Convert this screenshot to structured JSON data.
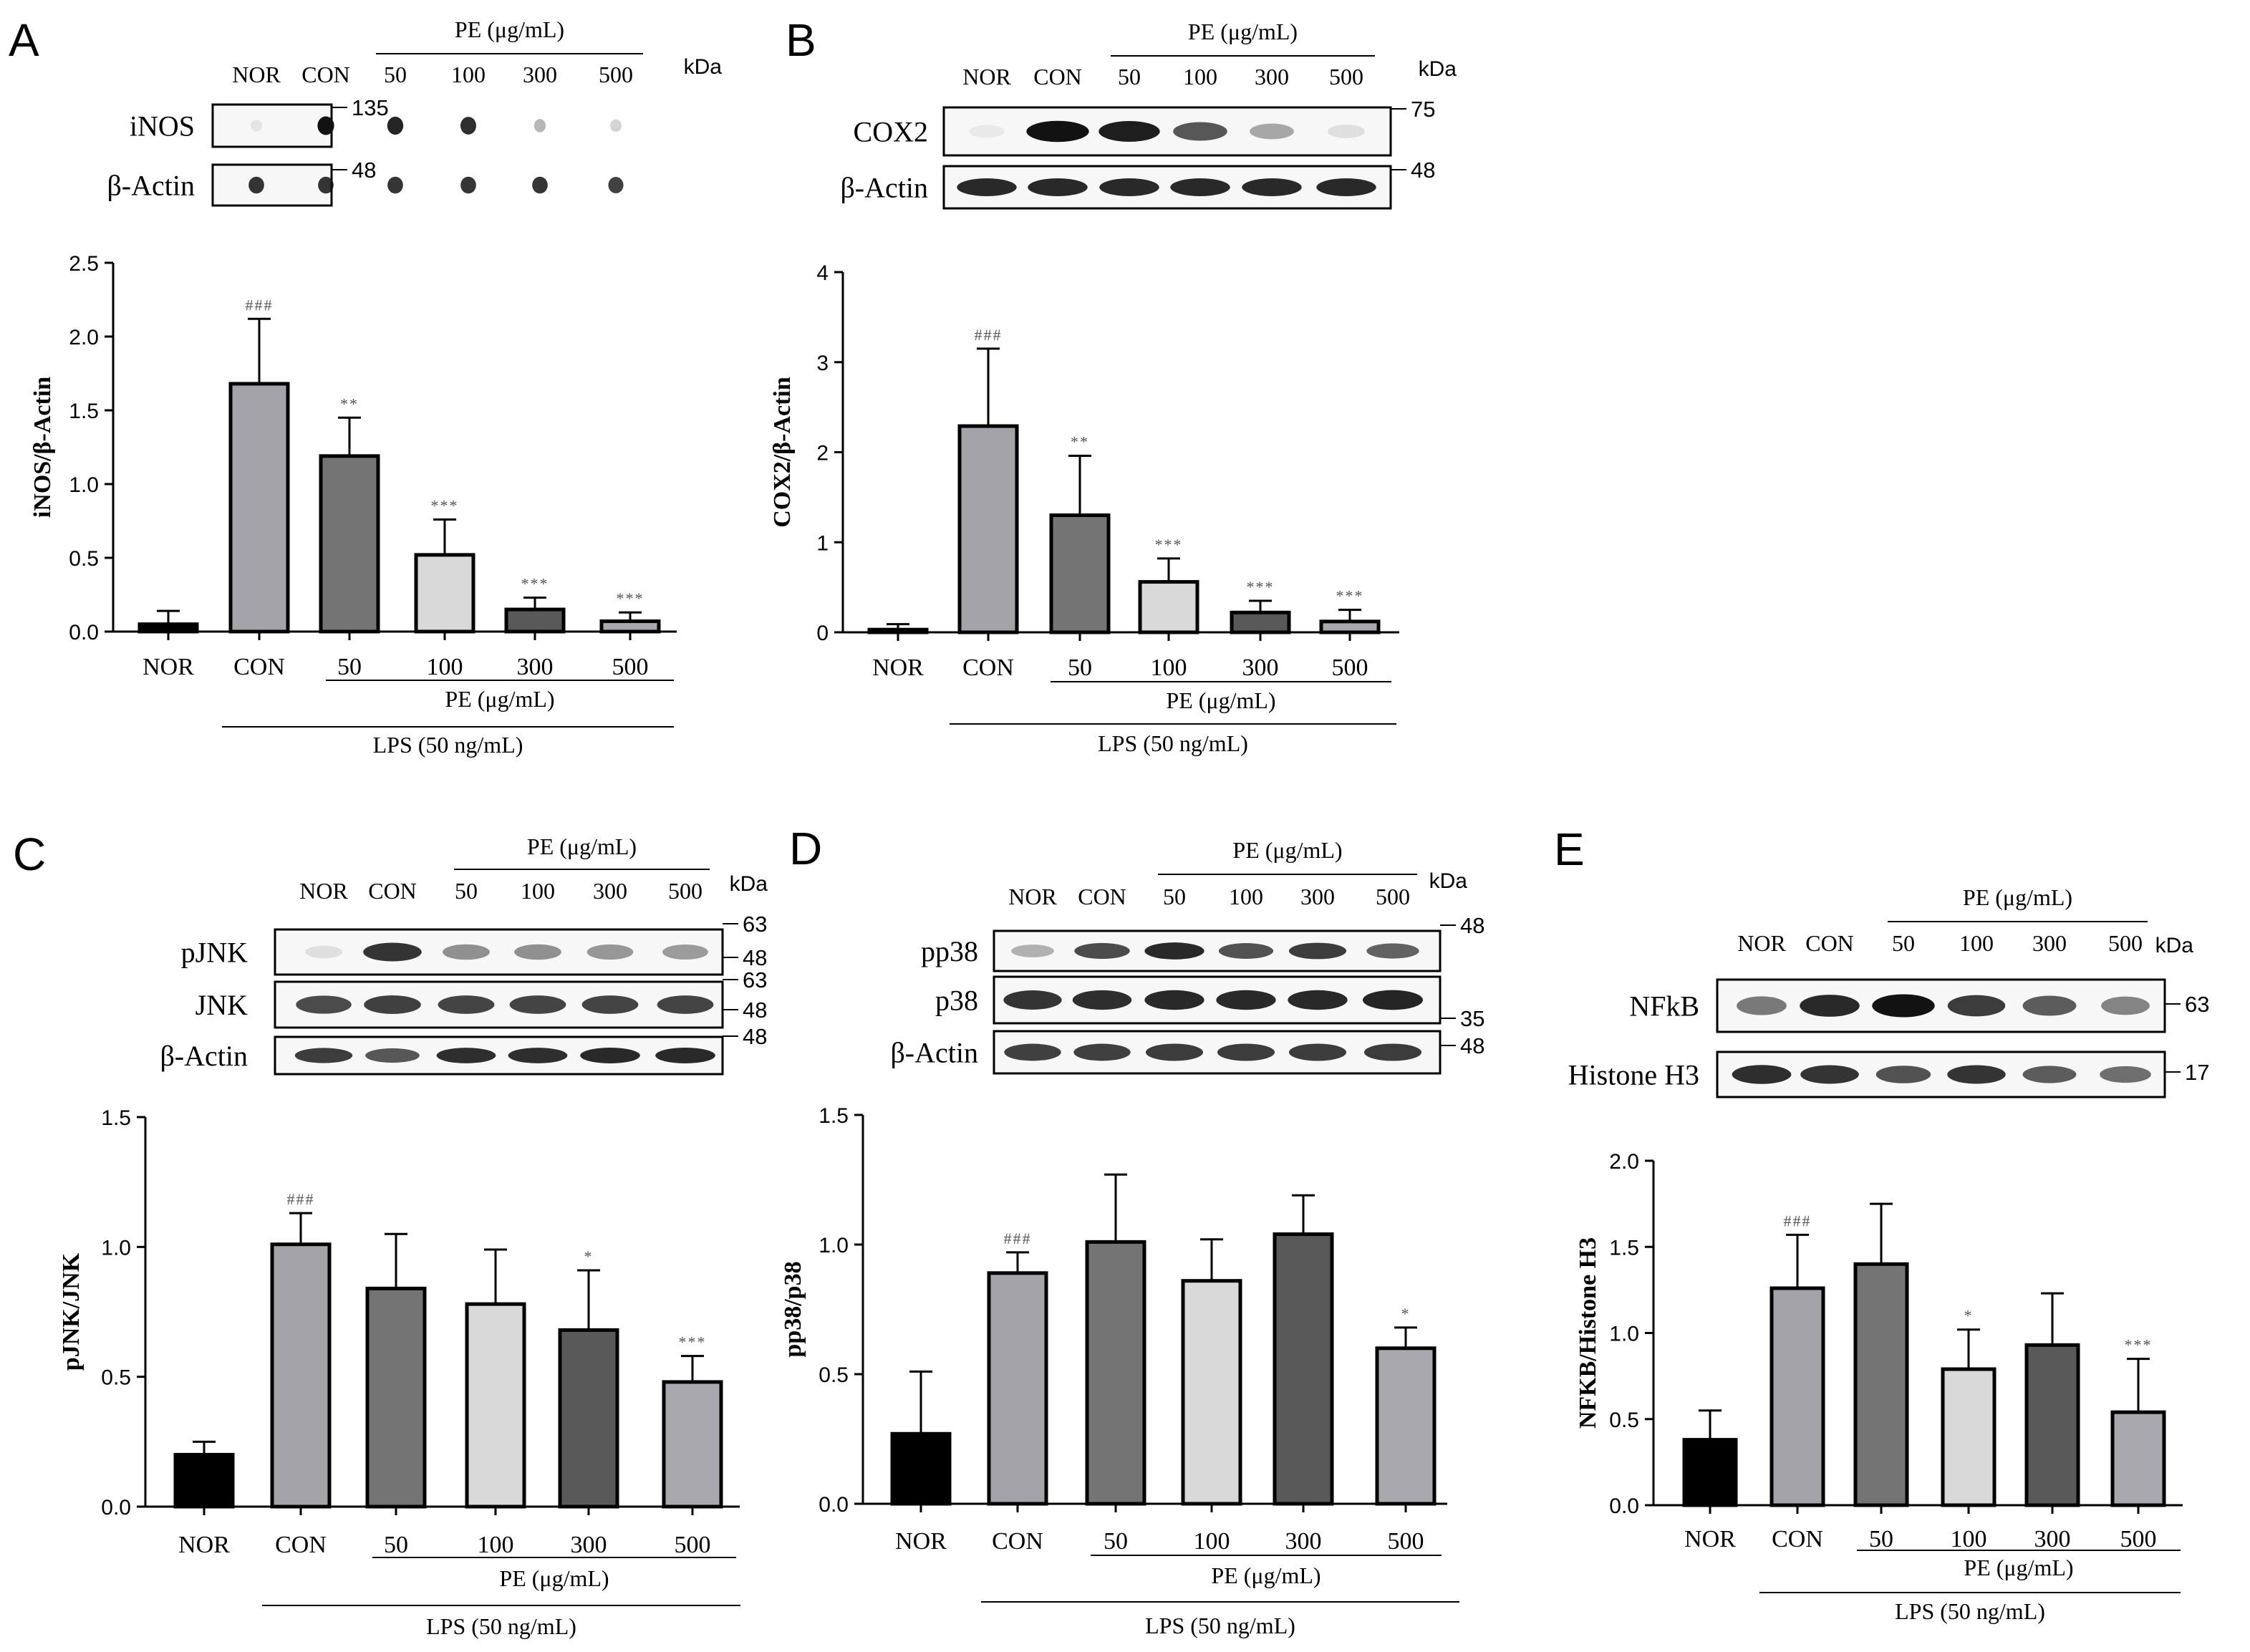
{
  "colors": {
    "NOR": "#000000",
    "CON": "#a3a3a9",
    "PE50": "#747474",
    "PE100": "#d9d9d9",
    "PE300": "#595959",
    "PE500": "#a8a8ae",
    "axis": "#000000",
    "significance": "#555555",
    "band": "#121212",
    "blot_bg": "#f7f7f7"
  },
  "blots": {
    "A": {
      "kda_label": "kDa",
      "pe_header": "PE (μg/mL)",
      "lanes": [
        "NOR",
        "CON",
        "50",
        "100",
        "300",
        "500"
      ],
      "rows": [
        {
          "name": "iNOS",
          "markers": [
            "135"
          ],
          "intensity": [
            0.08,
            1.0,
            0.92,
            0.88,
            0.3,
            0.18
          ]
        },
        {
          "name": "β-Actin",
          "markers": [
            "48"
          ],
          "intensity": [
            0.85,
            0.85,
            0.85,
            0.85,
            0.85,
            0.8
          ]
        }
      ]
    },
    "B": {
      "kda_label": "kDa",
      "pe_header": "PE (μg/mL)",
      "lanes": [
        "NOR",
        "CON",
        "50",
        "100",
        "300",
        "500"
      ],
      "rows": [
        {
          "name": "COX2",
          "markers": [
            "75"
          ],
          "intensity": [
            0.03,
            1.0,
            0.95,
            0.7,
            0.35,
            0.1
          ]
        },
        {
          "name": "β-Actin",
          "markers": [
            "48"
          ],
          "intensity": [
            0.9,
            0.9,
            0.9,
            0.9,
            0.9,
            0.9
          ]
        }
      ]
    },
    "C": {
      "kda_label": "kDa",
      "pe_header": "PE (μg/mL)",
      "lanes": [
        "NOR",
        "CON",
        "50",
        "100",
        "300",
        "500"
      ],
      "rows": [
        {
          "name": "pJNK",
          "markers": [
            "63",
            "48"
          ],
          "intensity": [
            0.1,
            0.85,
            0.45,
            0.45,
            0.42,
            0.4
          ]
        },
        {
          "name": "JNK",
          "markers": [
            "63",
            "48"
          ],
          "intensity": [
            0.75,
            0.8,
            0.78,
            0.78,
            0.78,
            0.78
          ]
        },
        {
          "name": "β-Actin",
          "markers": [
            "48"
          ],
          "intensity": [
            0.82,
            0.7,
            0.88,
            0.88,
            0.9,
            0.9
          ]
        }
      ]
    },
    "D": {
      "kda_label": "kDa",
      "pe_header": "PE (μg/mL)",
      "lanes": [
        "NOR",
        "CON",
        "50",
        "100",
        "300",
        "500"
      ],
      "rows": [
        {
          "name": "pp38",
          "markers": [
            "48"
          ],
          "intensity": [
            0.3,
            0.75,
            0.9,
            0.72,
            0.82,
            0.65
          ]
        },
        {
          "name": "p38",
          "markers": [
            "35"
          ],
          "intensity": [
            0.85,
            0.88,
            0.9,
            0.9,
            0.9,
            0.92
          ]
        },
        {
          "name": "β-Actin",
          "markers": [
            "48"
          ],
          "intensity": [
            0.8,
            0.8,
            0.82,
            0.82,
            0.82,
            0.82
          ]
        }
      ]
    },
    "E": {
      "kda_label": "kDa",
      "pe_header": "PE (μg/mL)",
      "lanes": [
        "NOR",
        "CON",
        "50",
        "100",
        "300",
        "500"
      ],
      "rows": [
        {
          "name": "NFkB",
          "markers": [
            "63"
          ],
          "intensity": [
            0.55,
            0.9,
            1.0,
            0.82,
            0.68,
            0.5
          ]
        },
        {
          "name": "Histone H3",
          "markers": [
            "17"
          ],
          "intensity": [
            0.88,
            0.85,
            0.72,
            0.85,
            0.68,
            0.6
          ]
        }
      ]
    }
  },
  "chart_data": [
    {
      "panel": "A",
      "type": "bar",
      "ylabel": "iNOS/β-Actin",
      "ylim": [
        0,
        2.5
      ],
      "yticks": [
        0.0,
        0.5,
        1.0,
        1.5,
        2.0,
        2.5
      ],
      "categories": [
        "NOR",
        "CON",
        "50",
        "100",
        "300",
        "500"
      ],
      "values": [
        0.05,
        1.68,
        1.19,
        0.52,
        0.15,
        0.07
      ],
      "errors": [
        0.09,
        0.44,
        0.26,
        0.24,
        0.08,
        0.06
      ],
      "significance": [
        "",
        "###",
        "**",
        "***",
        "***",
        "***"
      ],
      "group_labels": {
        "pe": "PE (μg/mL)",
        "lps": "LPS (50 ng/mL)"
      },
      "grid": false
    },
    {
      "panel": "B",
      "type": "bar",
      "ylabel": "COX2/β-Actin",
      "ylim": [
        0,
        4
      ],
      "yticks": [
        0,
        1,
        2,
        3,
        4
      ],
      "categories": [
        "NOR",
        "CON",
        "50",
        "100",
        "300",
        "500"
      ],
      "values": [
        0.03,
        2.29,
        1.3,
        0.56,
        0.22,
        0.12
      ],
      "errors": [
        0.06,
        0.86,
        0.66,
        0.26,
        0.13,
        0.13
      ],
      "significance": [
        "",
        "###",
        "**",
        "***",
        "***",
        "***"
      ],
      "group_labels": {
        "pe": "PE (μg/mL)",
        "lps": "LPS (50 ng/mL)"
      },
      "grid": false
    },
    {
      "panel": "C",
      "type": "bar",
      "ylabel": "pJNK/JNK",
      "ylim": [
        0,
        1.5
      ],
      "yticks": [
        0.0,
        0.5,
        1.0,
        1.5
      ],
      "categories": [
        "NOR",
        "CON",
        "50",
        "100",
        "300",
        "500"
      ],
      "values": [
        0.2,
        1.01,
        0.84,
        0.78,
        0.68,
        0.48
      ],
      "errors": [
        0.05,
        0.12,
        0.21,
        0.21,
        0.23,
        0.1
      ],
      "significance": [
        "",
        "###",
        "",
        "",
        "*",
        "***"
      ],
      "group_labels": {
        "pe": "PE (μg/mL)",
        "lps": "LPS (50 ng/mL)"
      },
      "grid": false
    },
    {
      "panel": "D",
      "type": "bar",
      "ylabel": "pp38/p38",
      "ylim": [
        0,
        1.5
      ],
      "yticks": [
        0.0,
        0.5,
        1.0,
        1.5
      ],
      "categories": [
        "NOR",
        "CON",
        "50",
        "100",
        "300",
        "500"
      ],
      "values": [
        0.27,
        0.89,
        1.01,
        0.86,
        1.04,
        0.6
      ],
      "errors": [
        0.24,
        0.08,
        0.26,
        0.16,
        0.15,
        0.08
      ],
      "significance": [
        "",
        "###",
        "",
        "",
        "",
        "*"
      ],
      "group_labels": {
        "pe": "PE (μg/mL)",
        "lps": "LPS (50 ng/mL)"
      },
      "grid": false
    },
    {
      "panel": "E",
      "type": "bar",
      "ylabel": "NFKB/Histone H3",
      "ylim": [
        0,
        2.0
      ],
      "yticks": [
        0.0,
        0.5,
        1.0,
        1.5,
        2.0
      ],
      "categories": [
        "NOR",
        "CON",
        "50",
        "100",
        "300",
        "500"
      ],
      "values": [
        0.38,
        1.26,
        1.4,
        0.79,
        0.93,
        0.54
      ],
      "errors": [
        0.17,
        0.31,
        0.35,
        0.23,
        0.3,
        0.31
      ],
      "significance": [
        "",
        "###",
        "",
        "*",
        "",
        "***"
      ],
      "group_labels": {
        "pe": "PE (μg/mL)",
        "lps": "LPS (50 ng/mL)"
      },
      "grid": false
    }
  ]
}
